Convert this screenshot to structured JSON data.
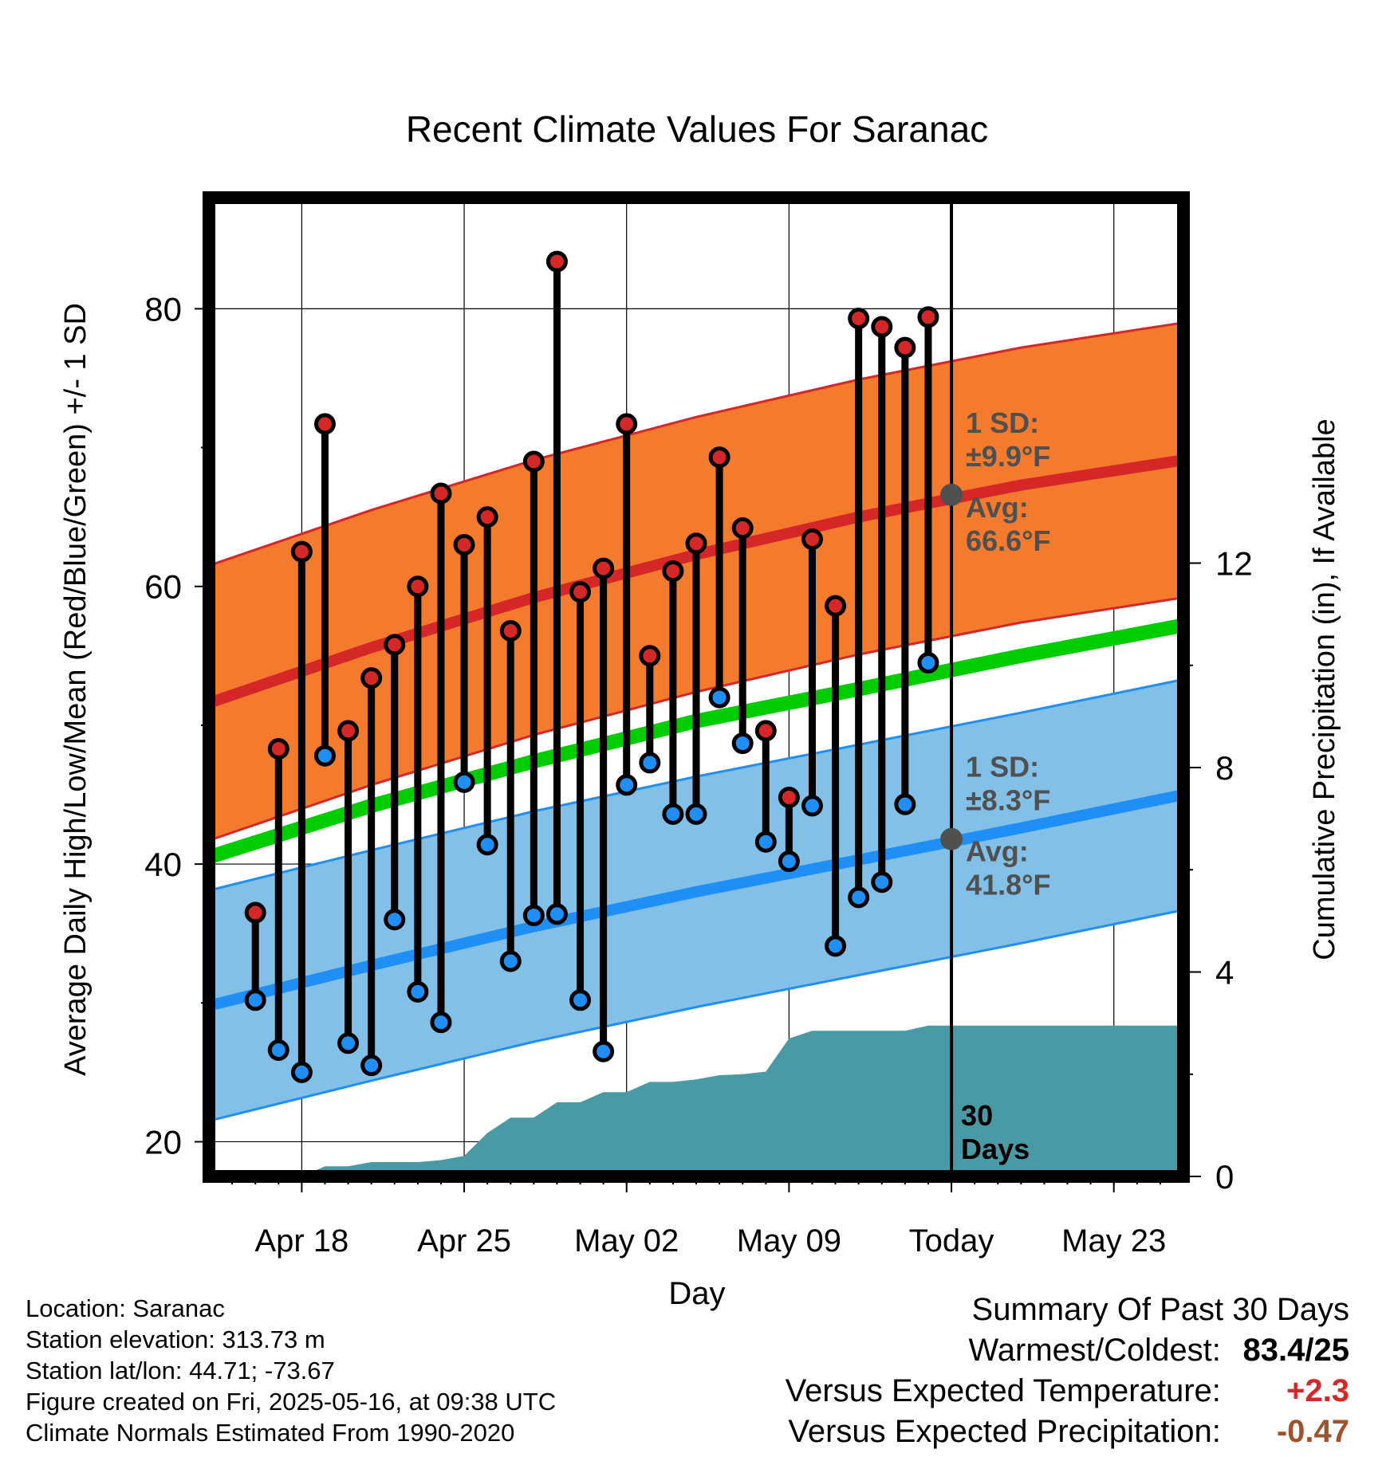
{
  "chart_data": {
    "type": "line",
    "title": "Recent Climate Values For Saranac",
    "xlabel": "Day",
    "ylabel": "Average Daily High/Low/Mean (Red/Blue/Green) +/- 1 SD",
    "y2label": "Cumulative Precipitation (in), If Available",
    "ylim": [
      17.5,
      88
    ],
    "y_ticks": [
      20,
      40,
      60,
      80
    ],
    "y2lim": [
      0,
      19.15
    ],
    "y2_ticks": [
      0,
      4,
      8,
      12
    ],
    "x_tick_labels": [
      "Apr 18",
      "Apr 25",
      "May 02",
      "May 09",
      "Today",
      "May 23"
    ],
    "x_tick_dates": [
      "2025-04-18",
      "2025-04-25",
      "2025-05-02",
      "2025-05-09",
      "2025-05-16",
      "2025-05-23"
    ],
    "xlim": [
      "2025-04-14",
      "2025-05-26"
    ],
    "grid": true,
    "today_label": "30 Days",
    "days": [
      "2025-04-16",
      "2025-04-17",
      "2025-04-18",
      "2025-04-19",
      "2025-04-20",
      "2025-04-21",
      "2025-04-22",
      "2025-04-23",
      "2025-04-24",
      "2025-04-25",
      "2025-04-26",
      "2025-04-27",
      "2025-04-28",
      "2025-04-29",
      "2025-04-30",
      "2025-05-01",
      "2025-05-02",
      "2025-05-03",
      "2025-05-04",
      "2025-05-05",
      "2025-05-06",
      "2025-05-07",
      "2025-05-08",
      "2025-05-09",
      "2025-05-10",
      "2025-05-11",
      "2025-05-12",
      "2025-05-13",
      "2025-05-14",
      "2025-05-15"
    ],
    "daily_high": [
      36.5,
      48.3,
      62.5,
      71.7,
      49.6,
      53.4,
      55.8,
      60.0,
      66.7,
      63.0,
      65.0,
      56.8,
      69.0,
      83.4,
      59.6,
      61.3,
      71.7,
      55.0,
      61.1,
      63.1,
      69.3,
      64.2,
      49.6,
      44.8,
      63.4,
      58.6,
      79.3,
      78.7,
      77.2,
      79.4
    ],
    "daily_low": [
      30.2,
      26.6,
      25.0,
      47.8,
      27.1,
      25.5,
      36.0,
      30.8,
      28.6,
      45.9,
      41.4,
      33.0,
      36.3,
      36.4,
      30.2,
      26.5,
      45.7,
      47.3,
      43.6,
      43.6,
      52.0,
      48.7,
      41.6,
      40.2,
      44.2,
      34.1,
      37.6,
      38.7,
      44.3,
      54.5
    ],
    "normals": {
      "x": [
        "2025-04-14",
        "2025-04-21",
        "2025-04-28",
        "2025-05-05",
        "2025-05-12",
        "2025-05-19",
        "2025-05-26"
      ],
      "high_mean": [
        51.6,
        55.6,
        59.2,
        62.3,
        65.0,
        67.3,
        69.1
      ],
      "high_sd": 9.9,
      "low_mean": [
        29.8,
        32.7,
        35.5,
        38.0,
        40.3,
        42.6,
        45.0
      ],
      "low_sd": 8.3,
      "mean": [
        40.5,
        44.2,
        47.4,
        50.3,
        52.6,
        55.0,
        57.2
      ]
    },
    "precipitation_cumulative": {
      "x": [
        "2025-04-14",
        "2025-04-17",
        "2025-04-18",
        "2025-04-19",
        "2025-04-20",
        "2025-04-21",
        "2025-04-22",
        "2025-04-23",
        "2025-04-24",
        "2025-04-25",
        "2025-04-26",
        "2025-04-27",
        "2025-04-28",
        "2025-04-29",
        "2025-04-30",
        "2025-05-01",
        "2025-05-02",
        "2025-05-03",
        "2025-05-04",
        "2025-05-05",
        "2025-05-06",
        "2025-05-07",
        "2025-05-08",
        "2025-05-09",
        "2025-05-10",
        "2025-05-11",
        "2025-05-12",
        "2025-05-13",
        "2025-05-14",
        "2025-05-15",
        "2025-05-16",
        "2025-05-26"
      ],
      "values": [
        0,
        0,
        0,
        0.2,
        0.2,
        0.28,
        0.28,
        0.28,
        0.32,
        0.4,
        0.85,
        1.15,
        1.15,
        1.45,
        1.45,
        1.65,
        1.65,
        1.85,
        1.85,
        1.9,
        1.98,
        2.0,
        2.05,
        2.7,
        2.85,
        2.85,
        2.85,
        2.85,
        2.85,
        2.95,
        2.95,
        2.95
      ]
    },
    "annotations": {
      "high": {
        "sd_label": "1 SD:",
        "sd_value": "±9.9°F",
        "avg_label": "Avg:",
        "avg_value": "66.6°F",
        "avg": 66.6
      },
      "low": {
        "sd_label": "1 SD:",
        "sd_value": "±8.3°F",
        "avg_label": "Avg:",
        "avg_value": "41.8°F",
        "avg": 41.8
      }
    },
    "colors": {
      "high_band": "#f47a2e",
      "high_line": "#d62728",
      "high_dot": "#d62728",
      "low_band": "#82c0e8",
      "low_line": "#1f8ff5",
      "low_dot": "#1f8ff5",
      "mean_line": "#00cc00",
      "precip": "#4a9aa5",
      "annotation_text": "#505050",
      "avg_dot": "#505050"
    }
  },
  "info": {
    "location": "Location: Saranac",
    "elevation": "Station elevation: 313.73 m",
    "latlon": "Station lat/lon: 44.71; -73.67",
    "created": "Figure created on Fri, 2025-05-16, at 09:38 UTC",
    "normals": "Climate Normals Estimated From 1990-2020"
  },
  "summary": {
    "title": "Summary Of Past 30 Days",
    "warm_cold_label": "Warmest/Coldest:",
    "warm_cold_value": "83.4/25",
    "temp_label": "Versus Expected Temperature:",
    "temp_value": "+2.3",
    "temp_color": "#d62728",
    "precip_label": "Versus Expected Precipitation:",
    "precip_value": "-0.47",
    "precip_color": "#a0522d"
  }
}
